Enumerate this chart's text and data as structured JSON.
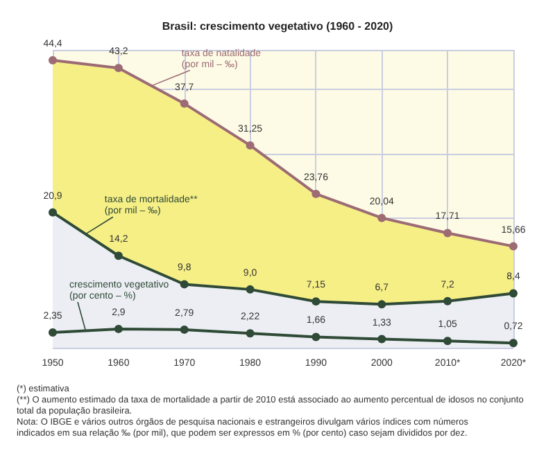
{
  "chart_data": {
    "type": "line",
    "title": "Brasil: crescimento vegetativo (1960 - 2020)",
    "categories": [
      "1950",
      "1960",
      "1970",
      "1980",
      "1990",
      "2000",
      "2010*",
      "2020*"
    ],
    "series": [
      {
        "name": "taxa de natalidade\n(por mil – ‰)",
        "type": "area",
        "color": "#9c6b74",
        "values": [
          44.4,
          43.2,
          37.7,
          31.25,
          23.76,
          20.04,
          17.71,
          15.66
        ],
        "value_labels": [
          "44,4",
          "43,2",
          "37,7",
          "31,25",
          "23,76",
          "20,04",
          "17,71",
          "15,66"
        ]
      },
      {
        "name": "taxa de mortalidade**\n(por mil – ‰)",
        "type": "area",
        "color": "#2f4a36",
        "values": [
          20.9,
          14.2,
          9.8,
          9.0,
          7.15,
          6.7,
          7.2,
          8.4
        ],
        "value_labels": [
          "20,9",
          "14,2",
          "9,8",
          "9,0",
          "7,15",
          "6,7",
          "7,2",
          "8,4"
        ]
      },
      {
        "name": "crescimento vegetativo\n(por cento – %)",
        "type": "line",
        "color": "#2f4a36",
        "values": [
          2.35,
          2.9,
          2.79,
          2.22,
          1.66,
          1.33,
          1.05,
          0.72
        ],
        "value_labels": [
          "2,35",
          "2,9",
          "2,79",
          "2,22",
          "1,66",
          "1,33",
          "1,05",
          "0,72"
        ]
      }
    ],
    "ylim": [
      0,
      46
    ],
    "grid": true,
    "marker": "circle",
    "tick_labels": "x",
    "legend": false,
    "annotations": [
      "(*) estimativa",
      "(**) O aumento estimado da taxa de mortalidade a partir de 2010 está associado ao aumento percentual de idosos no conjunto total da população brasileira.",
      "Nota: O IBGE e vários outros órgãos de pesquisa nacionais e estrangeiros divulgam vários índices com números indicados em sua relação ‰ (por mil), que podem ser expressos em % (por cento) caso sejam divididos por dez."
    ]
  }
}
